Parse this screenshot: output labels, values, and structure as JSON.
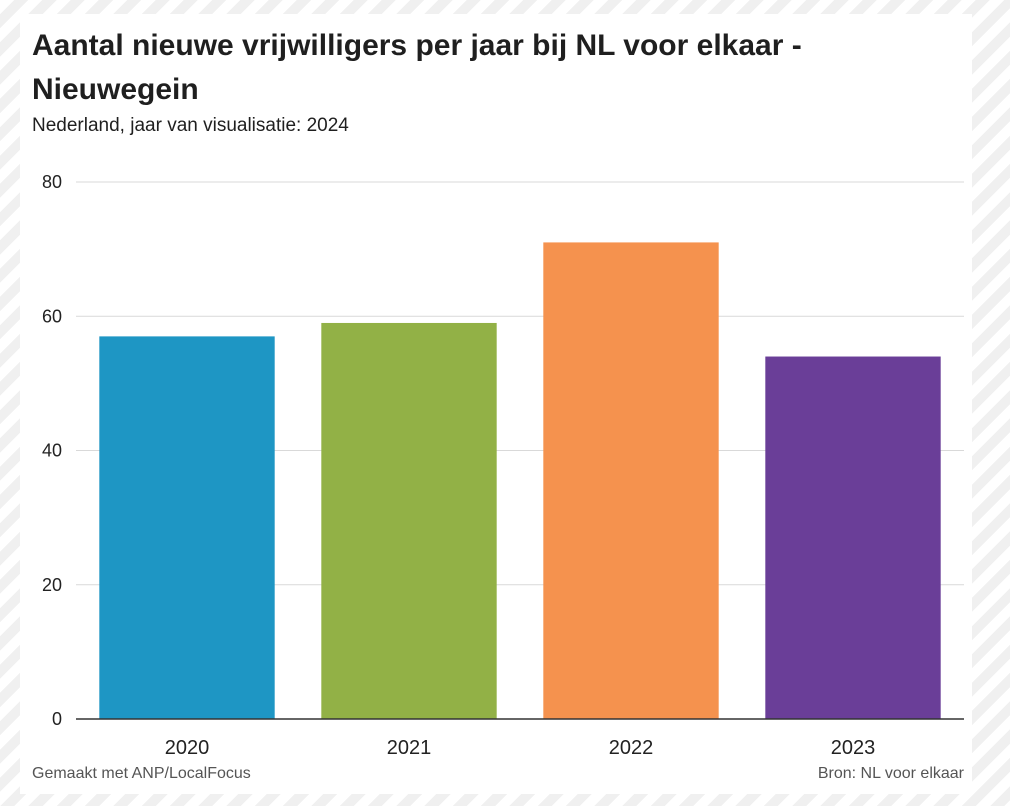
{
  "header": {
    "title": "Aantal nieuwe vrijwilligers per jaar bij NL voor elkaar - Nieuwegein",
    "subtitle": "Nederland, jaar van visualisatie: 2024"
  },
  "footer": {
    "credit": "Gemaakt met ANP/LocalFocus",
    "source": "Bron:  NL voor elkaar"
  },
  "chart_data": {
    "type": "bar",
    "categories": [
      "2020",
      "2021",
      "2022",
      "2023"
    ],
    "values": [
      57,
      59,
      71,
      54
    ],
    "colors": [
      "#1e96c4",
      "#92b146",
      "#f5924e",
      "#6a3e98"
    ],
    "xlabel": "",
    "ylabel": "",
    "ylim": [
      0,
      80
    ],
    "yticks": [
      0,
      20,
      40,
      60,
      80
    ],
    "grid": true,
    "legend": "none"
  }
}
